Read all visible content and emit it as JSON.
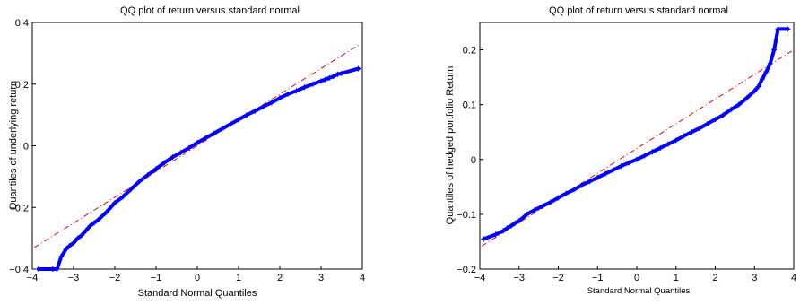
{
  "chart_data": [
    {
      "type": "scatter",
      "title": "QQ plot of return versus standard normal",
      "xlabel": "Standard Normal Quantiles",
      "ylabel": "Quantiles of underlying return",
      "xlim": [
        -4,
        4
      ],
      "ylim": [
        -0.4,
        0.4
      ],
      "xticks": [
        -4,
        -3,
        -2,
        -1,
        0,
        1,
        2,
        3,
        4
      ],
      "xtick_labels": [
        "−4",
        "−3",
        "−2",
        "−1",
        "0",
        "1",
        "2",
        "3",
        "4"
      ],
      "yticks": [
        -0.4,
        -0.2,
        0,
        0.2,
        0.4
      ],
      "ytick_labels": [
        "−0.4",
        "−0.2",
        "0",
        "0.2",
        "0.4"
      ],
      "marker": "+",
      "marker_color": "#0000ff",
      "grid": false,
      "series": [
        {
          "x": [
            -3.85,
            -3.5,
            -3.4,
            -3.3,
            -3.18,
            -3.1,
            -3.0,
            -2.9,
            -2.8,
            -2.7,
            -2.6,
            -2.5,
            -2.4,
            -2.2,
            -2.0,
            -1.8,
            -1.6,
            -1.4,
            -1.2,
            -1.0,
            -0.8,
            -0.6,
            -0.4,
            -0.2,
            0.0,
            0.2,
            0.4,
            0.6,
            0.8,
            1.0,
            1.2,
            1.4,
            1.6,
            1.8,
            2.0,
            2.2,
            2.4,
            2.6,
            2.8,
            3.0,
            3.1,
            3.2,
            3.3,
            3.4,
            3.5,
            3.9
          ],
          "y": [
            -0.4,
            -0.4,
            -0.4,
            -0.36,
            -0.335,
            -0.325,
            -0.315,
            -0.3,
            -0.29,
            -0.275,
            -0.26,
            -0.25,
            -0.24,
            -0.215,
            -0.185,
            -0.165,
            -0.14,
            -0.115,
            -0.095,
            -0.075,
            -0.055,
            -0.037,
            -0.022,
            -0.007,
            0.01,
            0.025,
            0.04,
            0.055,
            0.07,
            0.085,
            0.1,
            0.113,
            0.127,
            0.14,
            0.155,
            0.168,
            0.178,
            0.19,
            0.2,
            0.21,
            0.215,
            0.22,
            0.225,
            0.232,
            0.235,
            0.25
          ]
        }
      ],
      "reference_line": {
        "x": [
          -3.95,
          3.95
        ],
        "y": [
          -0.33,
          0.33
        ],
        "color": "#ff0000",
        "style": "dash-dot"
      }
    },
    {
      "type": "scatter",
      "title": "QQ plot of return versus standard normal",
      "xlabel": "Standard Normal Quantiles",
      "ylabel": "Quantiles of hedged portfolio Return",
      "xlim": [
        -4,
        4
      ],
      "ylim": [
        -0.2,
        0.25
      ],
      "xticks": [
        -4,
        -3,
        -2,
        -1,
        0,
        1,
        2,
        3,
        4
      ],
      "xtick_labels": [
        "−4",
        "−3",
        "−2",
        "−1",
        "0",
        "1",
        "2",
        "3",
        "4"
      ],
      "yticks": [
        -0.2,
        -0.1,
        0,
        0.1,
        0.2
      ],
      "ytick_labels": [
        "−0.2",
        "−0.1",
        "0",
        "0.1",
        "0.2"
      ],
      "marker": "+",
      "marker_color": "#0000ff",
      "grid": false,
      "series": [
        {
          "x": [
            -3.9,
            -3.6,
            -3.4,
            -3.3,
            -3.2,
            -3.1,
            -3.0,
            -2.8,
            -2.6,
            -2.4,
            -2.2,
            -2.0,
            -1.8,
            -1.6,
            -1.4,
            -1.2,
            -1.0,
            -0.8,
            -0.6,
            -0.4,
            -0.2,
            0.0,
            0.2,
            0.4,
            0.6,
            0.8,
            1.0,
            1.2,
            1.4,
            1.6,
            1.8,
            2.0,
            2.2,
            2.4,
            2.6,
            2.8,
            3.0,
            3.1,
            3.2,
            3.3,
            3.4,
            3.5,
            3.6,
            3.85
          ],
          "y": [
            -0.145,
            -0.137,
            -0.13,
            -0.125,
            -0.121,
            -0.116,
            -0.112,
            -0.1,
            -0.092,
            -0.085,
            -0.078,
            -0.07,
            -0.062,
            -0.055,
            -0.047,
            -0.04,
            -0.033,
            -0.026,
            -0.019,
            -0.012,
            -0.006,
            0.0,
            0.007,
            0.014,
            0.021,
            0.028,
            0.035,
            0.043,
            0.05,
            0.057,
            0.065,
            0.073,
            0.081,
            0.091,
            0.1,
            0.112,
            0.125,
            0.133,
            0.147,
            0.16,
            0.175,
            0.2,
            0.238,
            0.238
          ]
        }
      ],
      "reference_line": {
        "x": [
          -3.95,
          3.95
        ],
        "y": [
          -0.158,
          0.198
        ],
        "color": "#ff0000",
        "style": "dash-dot"
      }
    }
  ]
}
